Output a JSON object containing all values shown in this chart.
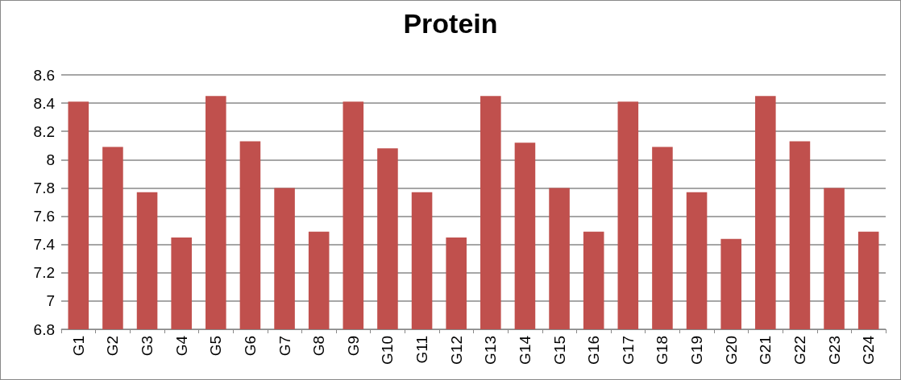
{
  "chart_data": {
    "type": "bar",
    "title": "Protein",
    "categories": [
      "G1",
      "G2",
      "G3",
      "G4",
      "G5",
      "G6",
      "G7",
      "G8",
      "G9",
      "G10",
      "G11",
      "G12",
      "G13",
      "G14",
      "G15",
      "G16",
      "G17",
      "G18",
      "G19",
      "G20",
      "G21",
      "G22",
      "G23",
      "G24"
    ],
    "values": [
      8.41,
      8.09,
      7.77,
      7.45,
      8.45,
      8.13,
      7.8,
      7.49,
      8.41,
      8.08,
      7.77,
      7.45,
      8.45,
      8.12,
      7.8,
      7.49,
      8.41,
      8.09,
      7.77,
      7.44,
      8.45,
      8.13,
      7.8,
      7.49
    ],
    "color": "#c0504d",
    "ylim": [
      6.8,
      8.6
    ],
    "yticks": [
      6.8,
      7,
      7.2,
      7.4,
      7.6,
      7.8,
      8,
      8.2,
      8.4,
      8.6
    ],
    "grid": "y"
  }
}
